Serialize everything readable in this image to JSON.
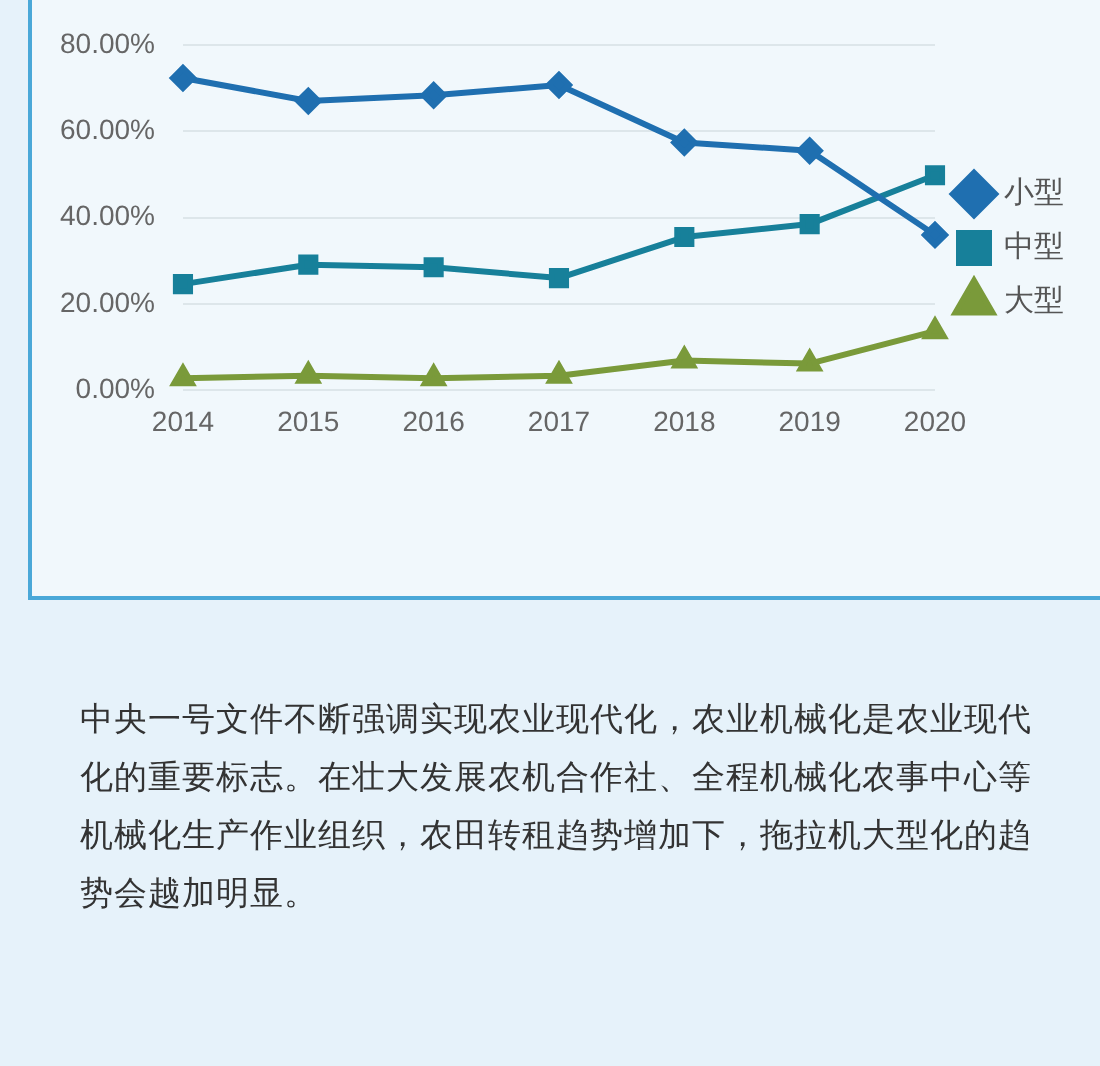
{
  "chart_data": {
    "type": "line",
    "categories": [
      "2014",
      "2015",
      "2016",
      "2017",
      "2018",
      "2019",
      "2020"
    ],
    "series": [
      {
        "name": "小型",
        "color": "#1f6fb0",
        "marker": "diamond",
        "values": [
          72.3,
          67,
          68.3,
          70.7,
          57.4,
          55.5,
          36
        ]
      },
      {
        "name": "中型",
        "color": "#17809a",
        "marker": "square",
        "values": [
          24.6,
          29.1,
          28.5,
          26,
          35.5,
          38.5,
          49.8
        ]
      },
      {
        "name": "大型",
        "color": "#7a9a3a",
        "marker": "triangle",
        "values": [
          2.8,
          3.4,
          2.8,
          3.4,
          6.9,
          6.2,
          13.7
        ]
      }
    ],
    "ylim": [
      0,
      80
    ],
    "yticks": [
      {
        "value": 0,
        "label": "0.00%"
      },
      {
        "value": 20,
        "label": "20.00%"
      },
      {
        "value": 40,
        "label": "40.00%"
      },
      {
        "value": 60,
        "label": "60.00%"
      },
      {
        "value": 80,
        "label": "80.00%"
      }
    ],
    "grid": "y",
    "legend": "right",
    "annotations": [
      "中央一号文件不断强调实现农业现代化，农业机械化是农业现代化的重要标志。在壮大发展农机合作社、全程机械化农事中心等机械化生产作业组织，农田转租趋势增加下，拖拉机大型化的趋势会越加明显。"
    ]
  }
}
